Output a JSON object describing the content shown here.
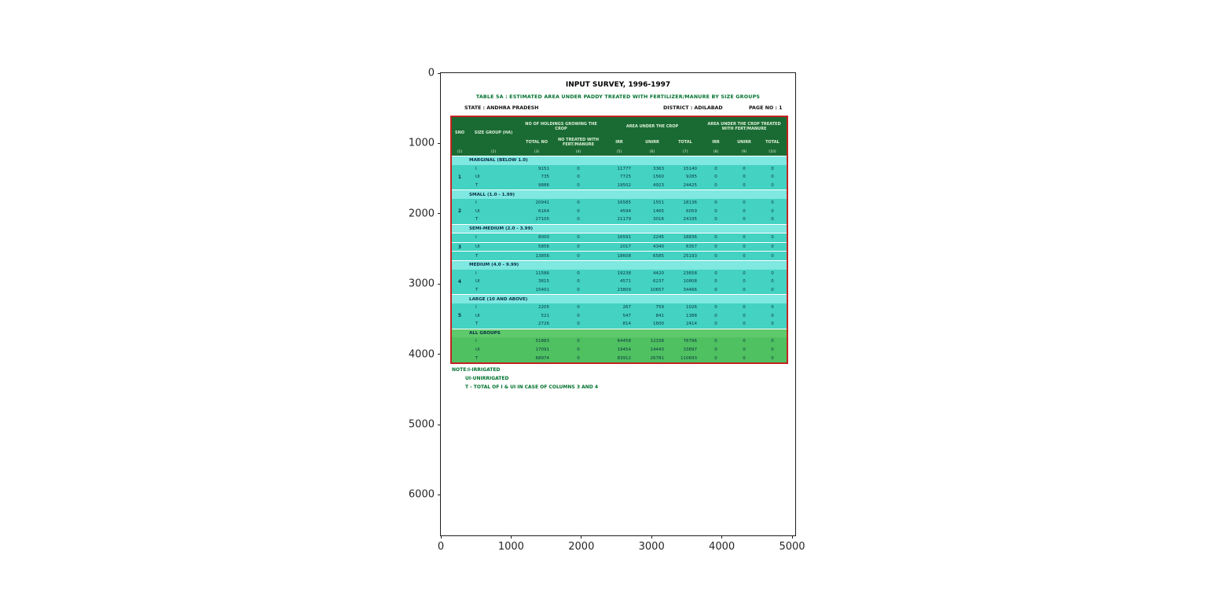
{
  "figure": {
    "x_tick_labels": [
      "0",
      "1000",
      "2000",
      "3000",
      "4000",
      "5000"
    ],
    "y_tick_labels": [
      "0",
      "1000",
      "2000",
      "3000",
      "4000",
      "5000",
      "6000"
    ]
  },
  "colors": {
    "header_bg": "#1a6b33",
    "data_row_bg": "#44d2c2",
    "label_row_bg": "#7fe8e0",
    "all_groups_bg": "#4fc161",
    "all_groups_label_bg": "#5fca6b",
    "table_border": "#c42222",
    "note_text": "#00722e"
  },
  "document": {
    "title": "INPUT SURVEY, 1996-1997",
    "subtitle": "TABLE 5A : ESTIMATED AREA UNDER PADDY TREATED WITH FERTILIZER/MANURE BY SIZE GROUPS",
    "state": "STATE : ANDHRA PRADESH",
    "district": "DISTRICT : ADILABAD",
    "page": "PAGE NO : 1",
    "notes": [
      "NOTE:I-IRRIGATED",
      "UI-UNIRRIGATED",
      "T - TOTAL OF I & UI IN CASE OF COLUMNS 3 AND 4"
    ]
  },
  "table": {
    "header": {
      "sno": "SNO",
      "size_group": "SIZE GROUP (HA)",
      "holdings_group": "NO OF HOLDINGS GROWING THE CROP",
      "holdings_total": "TOTAL NO",
      "holdings_treated": "NO TREATED WITH FERT/MANURE",
      "area_group": "AREA UNDER THE CROP",
      "treated_group": "AREA UNDER THE CROP TREATED WITH FERT/MANURE",
      "irr": "IRR",
      "unirr": "UNIRR",
      "total": "TOTAL",
      "col_numbers": [
        "(1)",
        "(2)",
        "(3)",
        "(4)",
        "(5)",
        "(6)",
        "(7)",
        "(8)",
        "(9)",
        "(10)"
      ]
    },
    "groups": [
      {
        "sno": "1",
        "label": "MARGINAL (BELOW 1.0)",
        "all_groups": false,
        "rows": [
          {
            "type": "I",
            "values": [
              "9151",
              "0",
              "11777",
              "3363",
              "15140",
              "0",
              "0",
              "0"
            ]
          },
          {
            "type": "UI",
            "values": [
              "735",
              "0",
              "7725",
              "1560",
              "9285",
              "0",
              "0",
              "0"
            ]
          },
          {
            "type": "T",
            "values": [
              "9886",
              "0",
              "19502",
              "4923",
              "24425",
              "0",
              "0",
              "0"
            ]
          }
        ]
      },
      {
        "sno": "2",
        "label": "SMALL (1.0 - 1.99)",
        "all_groups": false,
        "rows": [
          {
            "type": "I",
            "values": [
              "20941",
              "0",
              "16585",
              "1551",
              "18136",
              "0",
              "0",
              "0"
            ]
          },
          {
            "type": "UI",
            "values": [
              "6164",
              "0",
              "4594",
              "1465",
              "6059",
              "0",
              "0",
              "0"
            ]
          },
          {
            "type": "T",
            "values": [
              "27105",
              "0",
              "21179",
              "3016",
              "24195",
              "0",
              "0",
              "0"
            ]
          }
        ]
      },
      {
        "sno": "3",
        "label": "SEMI-MEDIUM (2.0 - 3.99)",
        "all_groups": false,
        "rows": [
          {
            "type": "I",
            "values": [
              "8000",
              "0",
              "16591",
              "2245",
              "18836",
              "0",
              "0",
              "0"
            ]
          },
          {
            "type": "UI",
            "values": [
              "5856",
              "0",
              "2017",
              "4340",
              "6357",
              "0",
              "0",
              "0"
            ]
          },
          {
            "type": "T",
            "values": [
              "13856",
              "0",
              "18608",
              "6585",
              "25193",
              "0",
              "0",
              "0"
            ]
          }
        ]
      },
      {
        "sno": "4",
        "label": "MEDIUM (4.0 - 9.99)",
        "all_groups": false,
        "rows": [
          {
            "type": "I",
            "values": [
              "11586",
              "0",
              "19238",
              "4420",
              "23658",
              "0",
              "0",
              "0"
            ]
          },
          {
            "type": "UI",
            "values": [
              "3815",
              "0",
              "4571",
              "6237",
              "10808",
              "0",
              "0",
              "0"
            ]
          },
          {
            "type": "T",
            "values": [
              "15401",
              "0",
              "23809",
              "10657",
              "34466",
              "0",
              "0",
              "0"
            ]
          }
        ]
      },
      {
        "sno": "5",
        "label": "LARGE (10 AND ABOVE)",
        "all_groups": false,
        "rows": [
          {
            "type": "I",
            "values": [
              "2205",
              "0",
              "267",
              "759",
              "1026",
              "0",
              "0",
              "0"
            ]
          },
          {
            "type": "UI",
            "values": [
              "521",
              "0",
              "547",
              "841",
              "1388",
              "0",
              "0",
              "0"
            ]
          },
          {
            "type": "T",
            "values": [
              "2726",
              "0",
              "814",
              "1600",
              "2414",
              "0",
              "0",
              "0"
            ]
          }
        ]
      },
      {
        "sno": "",
        "label": "ALL GROUPS",
        "all_groups": true,
        "rows": [
          {
            "type": "I",
            "values": [
              "51883",
              "0",
              "64458",
              "12338",
              "76796",
              "0",
              "0",
              "0"
            ]
          },
          {
            "type": "UI",
            "values": [
              "17091",
              "0",
              "19454",
              "14443",
              "33897",
              "0",
              "0",
              "0"
            ]
          },
          {
            "type": "T",
            "values": [
              "68974",
              "0",
              "83912",
              "26781",
              "110693",
              "0",
              "0",
              "0"
            ]
          }
        ]
      }
    ]
  }
}
